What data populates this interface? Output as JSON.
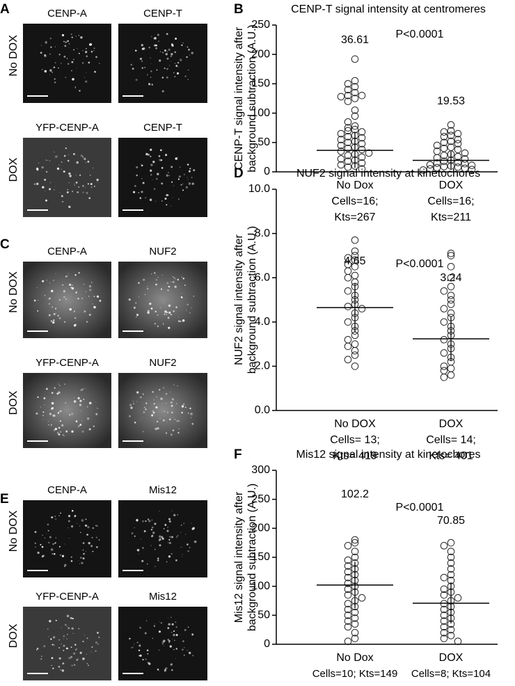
{
  "figure": {
    "panels": [
      {
        "letter": "A",
        "rows": [
          {
            "label": "No DOX",
            "images": [
              "CENP-A",
              "CENP-T"
            ]
          },
          {
            "label": "DOX",
            "images": [
              "YFP-CENP-A",
              "CENP-T"
            ]
          }
        ]
      },
      {
        "letter": "C",
        "rows": [
          {
            "label": "No DOX",
            "images": [
              "CENP-A",
              "NUF2"
            ]
          },
          {
            "label": "DOX",
            "images": [
              "YFP-CENP-A",
              "NUF2"
            ]
          }
        ]
      },
      {
        "letter": "E",
        "rows": [
          {
            "label": "No DOX",
            "images": [
              "CENP-A",
              "Mis12"
            ]
          },
          {
            "label": "DOX",
            "images": [
              "YFP-CENP-A",
              "Mis12"
            ]
          }
        ]
      }
    ]
  },
  "chart_data": [
    {
      "type": "strip",
      "panel_label": "B",
      "title": "CENP-T signal intensity at centromeres",
      "ylabel": [
        "CENP-T signal intensity after",
        "background subtraction (A.U.)"
      ],
      "annotation": "P<0.0001",
      "ylim": [
        0,
        250
      ],
      "yticks": [
        0,
        50,
        100,
        150,
        200,
        250
      ],
      "groups": [
        {
          "category": "No Dox",
          "notes": [
            "Cells=16;",
            "Kts=267"
          ],
          "mean": 36.61,
          "sd": 30,
          "values": [
            192,
            155,
            150,
            145,
            140,
            135,
            130,
            130,
            128,
            125,
            120,
            105,
            95,
            85,
            78,
            75,
            72,
            70,
            68,
            65,
            62,
            60,
            58,
            55,
            52,
            50,
            48,
            45,
            42,
            40,
            38,
            35,
            32,
            30,
            28,
            25,
            22,
            20,
            18,
            15,
            12,
            10,
            8,
            5
          ]
        },
        {
          "category": "DOX",
          "notes": [
            "Cells=16;",
            "Kts=211"
          ],
          "mean": 19.53,
          "sd": 15,
          "values": [
            80,
            70,
            68,
            65,
            62,
            60,
            55,
            52,
            50,
            48,
            45,
            42,
            40,
            38,
            35,
            32,
            30,
            28,
            26,
            24,
            22,
            20,
            18,
            16,
            15,
            14,
            12,
            11,
            10,
            9,
            8,
            7,
            6,
            5,
            4,
            3
          ]
        }
      ]
    },
    {
      "type": "strip",
      "panel_label": "D",
      "title": "NUF2 signal intensity at kinetochores",
      "ylabel": [
        "NUF2 signal intensity after",
        "background subtraction (A.U.)"
      ],
      "annotation": "P<0.0001",
      "ylim": [
        0,
        10
      ],
      "yticks": [
        {
          "value": 0,
          "label": "0.0"
        },
        {
          "value": 2,
          "label": "2.0"
        },
        {
          "value": 4,
          "label": "4.0"
        },
        {
          "value": 6,
          "label": "6.0"
        },
        {
          "value": 8,
          "label": "8.0"
        },
        {
          "value": 10,
          "label": "10.0"
        }
      ],
      "groups": [
        {
          "category": "No DOX",
          "notes": [
            "Cells= 13;",
            "Kts= 419"
          ],
          "mean": 4.65,
          "sd": 1.1,
          "values": [
            7.7,
            7.2,
            7.0,
            6.9,
            6.8,
            6.6,
            6.5,
            6.3,
            6.1,
            6.0,
            5.8,
            5.6,
            5.4,
            5.2,
            5.0,
            4.8,
            4.7,
            4.6,
            4.4,
            4.2,
            4.0,
            3.8,
            3.6,
            3.4,
            3.2,
            3.0,
            2.9,
            2.7,
            2.5,
            2.3,
            2.0
          ]
        },
        {
          "category": "DOX",
          "notes": [
            "Cells= 14;",
            "Kts= 401"
          ],
          "mean": 3.24,
          "sd": 1.0,
          "values": [
            7.1,
            7.0,
            6.5,
            6.0,
            5.6,
            5.4,
            5.2,
            5.0,
            4.8,
            4.6,
            4.4,
            4.2,
            4.0,
            3.8,
            3.6,
            3.4,
            3.2,
            3.0,
            2.8,
            2.6,
            2.4,
            2.2,
            2.0,
            1.9,
            1.8,
            1.6,
            1.5
          ]
        }
      ]
    },
    {
      "type": "strip",
      "panel_label": "F",
      "title": "Mis12 signal intensity at kinetochores",
      "ylabel": [
        "Mis12 signal intensity after",
        "background subtraction (A.U.)"
      ],
      "annotation": "P<0.0001",
      "ylim": [
        0,
        300
      ],
      "yticks": [
        0,
        50,
        100,
        150,
        200,
        250,
        300
      ],
      "groups": [
        {
          "category": "No Dox",
          "notes": [
            "Cells=10; Kts=149"
          ],
          "mean": 102.2,
          "sd": 40,
          "values": [
            180,
            175,
            170,
            160,
            150,
            145,
            140,
            135,
            130,
            125,
            120,
            115,
            110,
            105,
            100,
            95,
            90,
            85,
            80,
            75,
            70,
            65,
            60,
            55,
            50,
            45,
            40,
            35,
            30,
            20,
            10,
            5
          ]
        },
        {
          "category": "DOX",
          "notes": [
            "Cells=8; Kts=104"
          ],
          "mean": 70.85,
          "sd": 35,
          "values": [
            175,
            170,
            160,
            150,
            140,
            130,
            120,
            115,
            110,
            100,
            95,
            90,
            85,
            80,
            75,
            70,
            65,
            60,
            55,
            50,
            45,
            40,
            35,
            30,
            25,
            20,
            15,
            10,
            5
          ]
        }
      ]
    }
  ]
}
